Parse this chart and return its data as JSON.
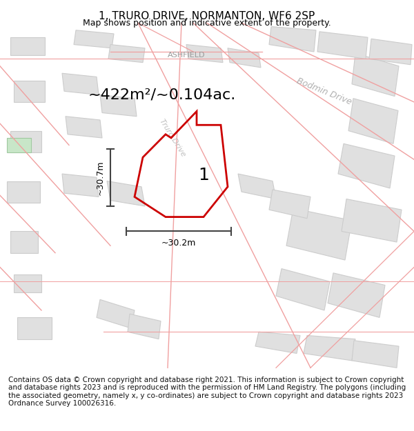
{
  "title": "1, TRURO DRIVE, NORMANTON, WF6 2SP",
  "subtitle": "Map shows position and indicative extent of the property.",
  "footer": "Contains OS data © Crown copyright and database right 2021. This information is subject to Crown copyright and database rights 2023 and is reproduced with the permission of HM Land Registry. The polygons (including the associated geometry, namely x, y co-ordinates) are subject to Crown copyright and database rights 2023 Ordnance Survey 100026316.",
  "area_label": "~422m²/~0.104ac.",
  "width_label": "~30.2m",
  "height_label": "~30.7m",
  "number_label": "1",
  "label_ashfield": "ASHFIELD",
  "label_bodmin": "Bodmin Drive",
  "label_truro": "Truro Drive",
  "map_bg": "#ffffff",
  "road_line_color": "#f0a0a0",
  "building_fill": "#e0e0e0",
  "building_edge": "#cccccc",
  "plot_color": "#cc0000",
  "dim_color": "#444444",
  "street_label_color": "#aaaaaa",
  "title_fontsize": 11,
  "subtitle_fontsize": 9,
  "footer_fontsize": 7.5,
  "area_fontsize": 16,
  "dim_fontsize": 9,
  "number_fontsize": 18
}
